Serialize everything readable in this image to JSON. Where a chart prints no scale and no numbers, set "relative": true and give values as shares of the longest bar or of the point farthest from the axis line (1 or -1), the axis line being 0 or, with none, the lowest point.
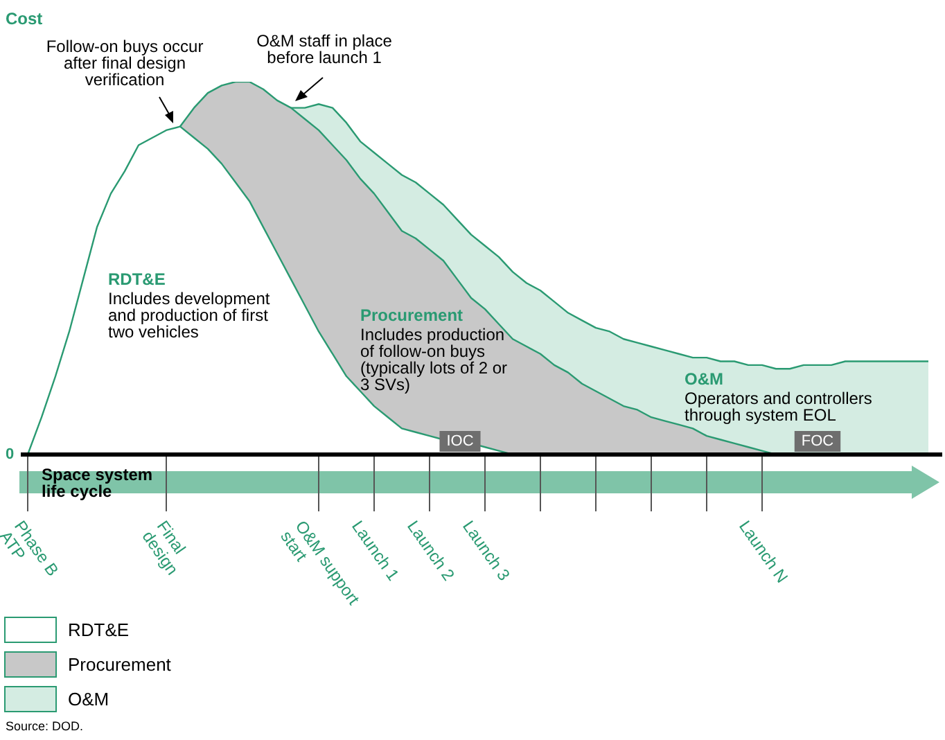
{
  "chart_data": {
    "type": "area",
    "ylabel": "Cost",
    "xlabel": "Space system life cycle",
    "relative": true,
    "categories": [
      "Phase B ATP",
      null,
      null,
      null,
      null,
      null,
      null,
      null,
      null,
      null,
      "Final design",
      null,
      null,
      null,
      null,
      null,
      null,
      null,
      null,
      null,
      null,
      "O&M support start",
      null,
      null,
      null,
      "Launch 1",
      null,
      null,
      null,
      "Launch 2",
      null,
      null,
      null,
      "Launch 3",
      null,
      null,
      null,
      null,
      null,
      null,
      null,
      null,
      null,
      null,
      null,
      null,
      null,
      null,
      null,
      null,
      null,
      null,
      null,
      "Launch N",
      null,
      null,
      null,
      null,
      null,
      null,
      null,
      null,
      null,
      null,
      null,
      null
    ],
    "series": [
      {
        "name": "RDT&E",
        "color": "#ffffff",
        "values": [
          0,
          0.1,
          0.21,
          0.33,
          0.47,
          0.61,
          0.7,
          0.76,
          0.83,
          0.85,
          0.87,
          0.88,
          0.85,
          0.82,
          0.78,
          0.73,
          0.68,
          0.61,
          0.54,
          0.47,
          0.4,
          0.33,
          0.27,
          0.21,
          0.17,
          0.13,
          0.1,
          0.07,
          0.06,
          0.05,
          0.04,
          0.03,
          0.03,
          0.02,
          0.01,
          0,
          null,
          null,
          null,
          null,
          null,
          null,
          null,
          null,
          null,
          null,
          null,
          null,
          null,
          null,
          null,
          null,
          null,
          null,
          null,
          null,
          null,
          null,
          null,
          null,
          null,
          null,
          null,
          null,
          null,
          null
        ]
      },
      {
        "name": "Procurement",
        "color": "#c8c8c8",
        "values": [
          null,
          null,
          null,
          null,
          null,
          null,
          null,
          null,
          null,
          null,
          null,
          0.88,
          0.93,
          0.97,
          0.99,
          1,
          1,
          0.98,
          0.95,
          0.93,
          0.9,
          0.87,
          0.83,
          0.79,
          0.74,
          0.7,
          0.65,
          0.6,
          0.58,
          0.55,
          0.52,
          0.47,
          0.42,
          0.39,
          0.35,
          0.31,
          0.29,
          0.27,
          0.24,
          0.22,
          0.19,
          0.17,
          0.15,
          0.13,
          0.12,
          0.1,
          0.09,
          0.08,
          0.07,
          0.05,
          0.04,
          0.03,
          0.02,
          0.01,
          0,
          null,
          null,
          null,
          null,
          null,
          null,
          null,
          null,
          null,
          null,
          null
        ]
      },
      {
        "name": "O&M",
        "color": "#d4ece2",
        "values": [
          null,
          null,
          null,
          null,
          null,
          null,
          null,
          null,
          null,
          null,
          null,
          null,
          null,
          null,
          null,
          null,
          null,
          null,
          null,
          0.93,
          0.93,
          0.94,
          0.93,
          0.89,
          0.84,
          0.81,
          0.78,
          0.75,
          0.73,
          0.7,
          0.67,
          0.63,
          0.59,
          0.56,
          0.53,
          0.49,
          0.46,
          0.44,
          0.41,
          0.38,
          0.36,
          0.34,
          0.33,
          0.31,
          0.3,
          0.29,
          0.28,
          0.27,
          0.26,
          0.26,
          0.25,
          0.25,
          0.24,
          0.24,
          0.23,
          0.23,
          0.24,
          0.24,
          0.24,
          0.25,
          0.25,
          0.25,
          0.25,
          0.25,
          0.25,
          0.25
        ]
      }
    ],
    "legend": "bottom left",
    "annotations": [
      "Follow-on buys occur after final design verification",
      "O&M staff in place before launch 1",
      "RDT&E",
      "Includes development and production of first two vehicles",
      "Procurement",
      "Includes production of follow-on buys (typically lots of 2 or 3 SVs)",
      "O&M",
      "Operators and controllers through system EOL",
      "IOC",
      "FOC",
      "0",
      "Source: DOD."
    ]
  }
}
